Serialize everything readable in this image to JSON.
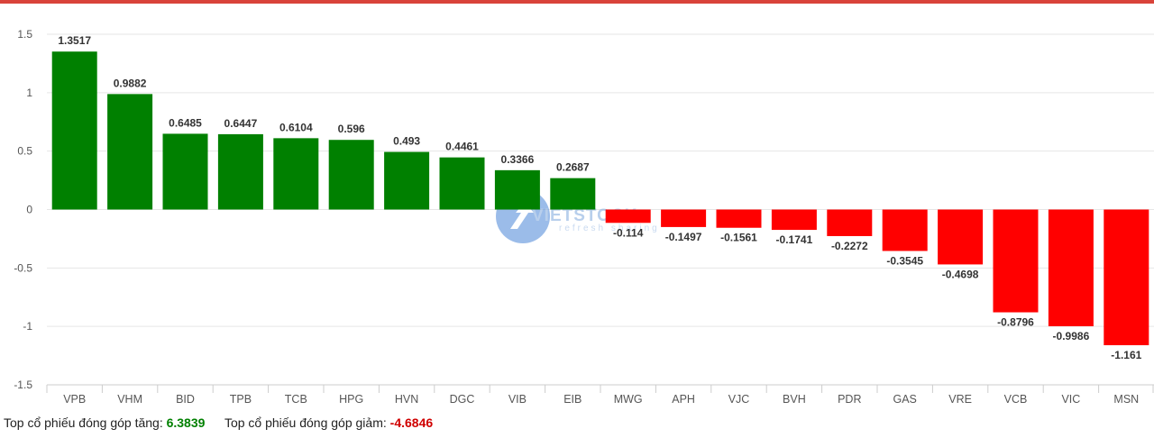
{
  "chart_data": {
    "type": "bar",
    "categories": [
      "VPB",
      "VHM",
      "BID",
      "TPB",
      "TCB",
      "HPG",
      "HVN",
      "DGC",
      "VIB",
      "EIB",
      "MWG",
      "APH",
      "VJC",
      "BVH",
      "PDR",
      "GAS",
      "VRE",
      "VCB",
      "VIC",
      "MSN"
    ],
    "values": [
      1.3517,
      0.9882,
      0.6485,
      0.6447,
      0.6104,
      0.596,
      0.493,
      0.4461,
      0.3366,
      0.2687,
      -0.114,
      -0.1497,
      -0.1561,
      -0.1741,
      -0.2272,
      -0.3545,
      -0.4698,
      -0.8796,
      -0.9986,
      -1.161
    ],
    "ylim": [
      -1.5,
      1.5
    ],
    "yticks": [
      "1.5",
      "1",
      "0.5",
      "0",
      "-0.5",
      "-1",
      "-1.5"
    ],
    "grid": true,
    "colors": {
      "positive": "#008000",
      "negative": "#ff0000",
      "grid": "#e6e6e6",
      "accent": "#d9433a"
    }
  },
  "summary": {
    "up_label": "Top cổ phiếu đóng góp tăng:",
    "up_value": "6.3839",
    "down_label": "Top cổ phiếu đóng góp giảm:",
    "down_value": "-4.6846",
    "up_color": "#008000",
    "down_color": "#d00000"
  },
  "watermark": {
    "brand": "VIETSTOCK",
    "tagline": "refresh sharing"
  }
}
